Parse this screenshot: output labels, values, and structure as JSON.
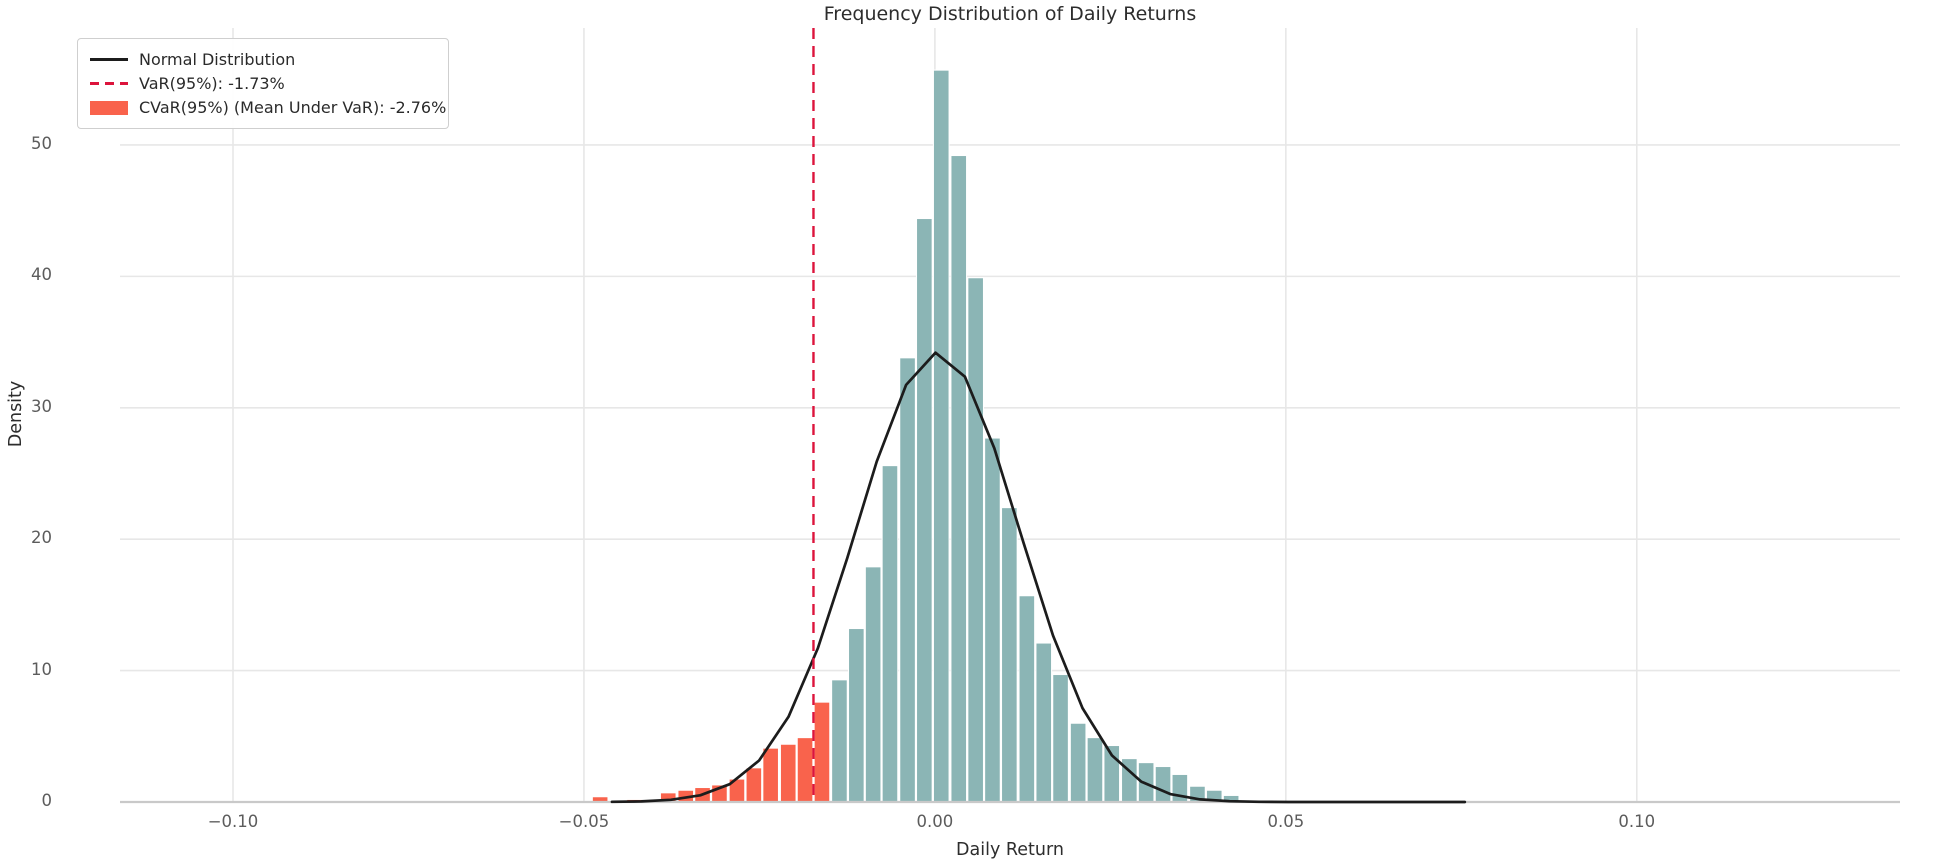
{
  "title": "Frequency Distribution of Daily Returns",
  "axes": {
    "x_label": "Daily Return",
    "y_label": "Density"
  },
  "legend": {
    "items": [
      {
        "label": "Normal Distribution",
        "swatch": "solid-line",
        "color": "#1c1c1c"
      },
      {
        "label": "VaR(95%): -1.73%",
        "swatch": "dashed-line",
        "color": "#DC143C"
      },
      {
        "label": "CVaR(95%) (Mean Under VaR): -2.76%",
        "swatch": "filled-box",
        "color": "#F9634C"
      }
    ]
  },
  "chart_data": {
    "type": "bar",
    "subtype": "histogram_with_normal_curve",
    "title": "Frequency Distribution of Daily Returns",
    "xlabel": "Daily Return",
    "ylabel": "Density",
    "xlim": [
      -0.1161,
      0.1375
    ],
    "ylim": [
      0,
      58.9
    ],
    "grid": true,
    "legend_position": "upper-left",
    "x_ticks": [
      {
        "v": -0.1,
        "label": "−0.10"
      },
      {
        "v": -0.05,
        "label": "−0.05"
      },
      {
        "v": 0.0,
        "label": "0.00"
      },
      {
        "v": 0.05,
        "label": "0.05"
      },
      {
        "v": 0.1,
        "label": "0.10"
      }
    ],
    "y_ticks": [
      {
        "v": 0,
        "label": "0"
      },
      {
        "v": 10,
        "label": "10"
      },
      {
        "v": 20,
        "label": "20"
      },
      {
        "v": 30,
        "label": "30"
      },
      {
        "v": 40,
        "label": "40"
      },
      {
        "v": 50,
        "label": "50"
      }
    ],
    "bin_width": 0.00243,
    "bins_below_var_count": 14,
    "bins": [
      {
        "x": -0.0477,
        "h": 0.4
      },
      {
        "x": -0.0453,
        "h": 0.0
      },
      {
        "x": -0.0428,
        "h": 0.2
      },
      {
        "x": -0.0404,
        "h": 0.0
      },
      {
        "x": -0.038,
        "h": 0.7
      },
      {
        "x": -0.0355,
        "h": 0.9
      },
      {
        "x": -0.0331,
        "h": 1.1
      },
      {
        "x": -0.0307,
        "h": 1.3
      },
      {
        "x": -0.0282,
        "h": 1.75
      },
      {
        "x": -0.0258,
        "h": 2.6
      },
      {
        "x": -0.0234,
        "h": 4.1
      },
      {
        "x": -0.0209,
        "h": 4.4
      },
      {
        "x": -0.0185,
        "h": 4.9
      },
      {
        "x": -0.0161,
        "h": 7.6
      },
      {
        "x": -0.0136,
        "h": 9.3
      },
      {
        "x": -0.0112,
        "h": 13.2
      },
      {
        "x": -0.0088,
        "h": 17.9
      },
      {
        "x": -0.0064,
        "h": 25.6
      },
      {
        "x": -0.0039,
        "h": 33.8
      },
      {
        "x": -0.0015,
        "h": 44.4
      },
      {
        "x": 0.0009,
        "h": 55.7
      },
      {
        "x": 0.0034,
        "h": 49.2
      },
      {
        "x": 0.0058,
        "h": 39.9
      },
      {
        "x": 0.0082,
        "h": 27.7
      },
      {
        "x": 0.0106,
        "h": 22.4
      },
      {
        "x": 0.0131,
        "h": 15.7
      },
      {
        "x": 0.0155,
        "h": 12.1
      },
      {
        "x": 0.0179,
        "h": 9.7
      },
      {
        "x": 0.0204,
        "h": 6.0
      },
      {
        "x": 0.0228,
        "h": 4.9
      },
      {
        "x": 0.0252,
        "h": 4.3
      },
      {
        "x": 0.0277,
        "h": 3.3
      },
      {
        "x": 0.0301,
        "h": 3.0
      },
      {
        "x": 0.0325,
        "h": 2.7
      },
      {
        "x": 0.0349,
        "h": 2.1
      },
      {
        "x": 0.0374,
        "h": 1.2
      },
      {
        "x": 0.0398,
        "h": 0.9
      },
      {
        "x": 0.0422,
        "h": 0.5
      }
    ],
    "var_line": {
      "value": -0.0173,
      "percent_label": "-1.73%"
    },
    "cvar": {
      "value": -0.0276,
      "percent_label": "-2.76%"
    },
    "normal_curve": {
      "mu": 0.0004,
      "sigma": 0.01166,
      "peak": 34.2,
      "x_min": -0.046,
      "x_max": 0.0755,
      "n_points": 30
    },
    "colors": {
      "histogram": "#8BB5B5",
      "tail": "#F9634C",
      "curve": "#1c1c1c",
      "var_line": "#DC143C",
      "grid": "#e7e7e7",
      "spine": "#c9c9c9",
      "bar_edge": "#ffffff"
    }
  }
}
